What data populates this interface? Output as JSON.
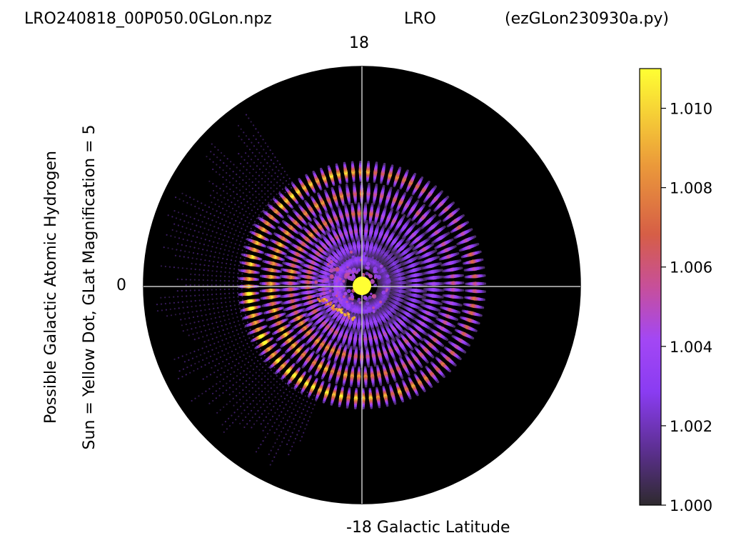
{
  "title": {
    "file": "LRO240818_00P050.0GLon.npz",
    "site": "LRO",
    "script": "(ezGLon230930a.py)"
  },
  "ylabel_lines": [
    "Possible Galactic Atomic Hydrogen",
    "Sun = Yellow Dot, GLat Magnification = 5"
  ],
  "axis_labels": {
    "top": "18",
    "left": "0",
    "bottom": "-18 Galactic Latitude"
  },
  "chart_data": {
    "type": "scatter",
    "projection": "polar (galactic plane view)",
    "title": "LRO240818_00P050.0GLon.npz          LRO          (ezGLon230930a.py)",
    "colormap": "gnuplot2-like (dark purple to yellow)",
    "background": "#000000",
    "sun_color": "#ffff33",
    "crosshair_color": "#bfbfbf",
    "radial_ticks": {
      "top": "18",
      "left": "0",
      "bottom": "-18"
    },
    "colorbar": {
      "range": [
        1.0,
        1.011
      ],
      "ticks": [
        1.0,
        1.002,
        1.004,
        1.006,
        1.008,
        1.01
      ],
      "tick_labels": [
        "1.000",
        "1.002",
        "1.004",
        "1.006",
        "1.008",
        "1.010"
      ]
    },
    "rings": [
      {
        "radius_frac": 0.12,
        "peak": 1.004
      },
      {
        "radius_frac": 0.18,
        "peak": 1.0045
      },
      {
        "radius_frac": 0.25,
        "peak": 1.006
      },
      {
        "radius_frac": 0.33,
        "peak": 1.008
      },
      {
        "radius_frac": 0.42,
        "peak": 1.009
      },
      {
        "radius_frac": 0.52,
        "peak": 1.011
      }
    ]
  }
}
